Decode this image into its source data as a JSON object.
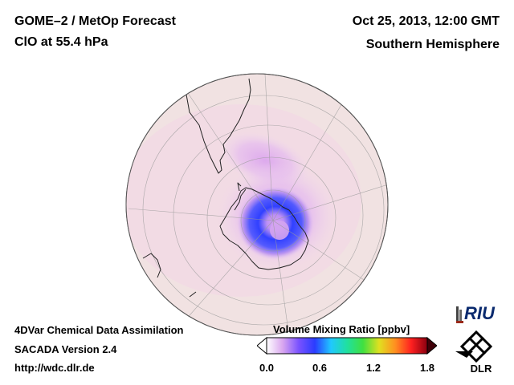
{
  "header": {
    "title": "GOME–2 / MetOp Forecast",
    "species": "ClO at 55.4 hPa",
    "datetime": "Oct 25, 2013, 12:00 GMT",
    "hemisphere": "Southern Hemisphere"
  },
  "footer": {
    "system": "4DVar Chemical Data Assimilation",
    "version": "SACADA Version 2.4",
    "url": "http://wdc.dlr.de"
  },
  "colorbar": {
    "title": "Volume Mixing Ratio [ppbv]",
    "ticks": [
      "0.0",
      "0.6",
      "1.2",
      "1.8"
    ],
    "min": 0.0,
    "max": 1.8,
    "colors": [
      "#ffffff",
      "#d9a6ef",
      "#7a52ff",
      "#2a3cff",
      "#20c8ff",
      "#20e0a0",
      "#40e040",
      "#e0e020",
      "#ff9020",
      "#ff2020",
      "#8a0010"
    ]
  },
  "logos": {
    "riu": "RIU",
    "dlr": "DLR"
  }
}
